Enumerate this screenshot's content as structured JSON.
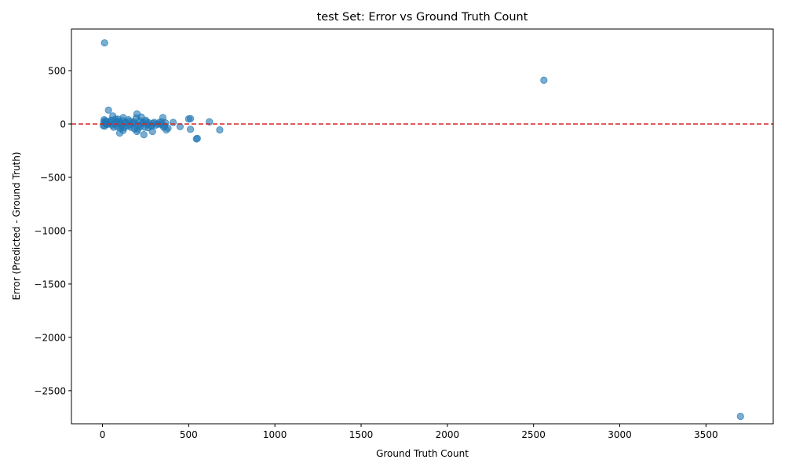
{
  "chart_data": {
    "type": "scatter",
    "title": "test Set: Error vs Ground Truth Count",
    "xlabel": "Ground Truth Count",
    "ylabel": "Error (Predicted - Ground Truth)",
    "xlim": [
      -180,
      3890
    ],
    "ylim": [
      -2810,
      890
    ],
    "xticks": [
      0,
      500,
      1000,
      1500,
      2000,
      2500,
      3000,
      3500
    ],
    "yticks": [
      500,
      0,
      -500,
      -1000,
      -1500,
      -2000,
      -2500
    ],
    "xtick_labels": [
      "0",
      "500",
      "1000",
      "1500",
      "2000",
      "2500",
      "3000",
      "3500"
    ],
    "ytick_labels": [
      "500",
      "0",
      "−500",
      "−1000",
      "−1500",
      "−2000",
      "−2500"
    ],
    "grid": false,
    "reference_line": {
      "y": 0,
      "style": "dashed",
      "color": "#d62728"
    },
    "marker_color": "#1f77b4",
    "series": [
      {
        "points": [
          [
            12,
            760
          ],
          [
            2560,
            410
          ],
          [
            3700,
            -2740
          ],
          [
            35,
            130
          ],
          [
            200,
            95
          ],
          [
            60,
            75
          ],
          [
            225,
            65
          ],
          [
            350,
            60
          ],
          [
            120,
            60
          ],
          [
            500,
            48
          ],
          [
            510,
            50
          ],
          [
            90,
            45
          ],
          [
            150,
            40
          ],
          [
            10,
            40
          ],
          [
            250,
            35
          ],
          [
            620,
            20
          ],
          [
            410,
            15
          ],
          [
            300,
            15
          ],
          [
            180,
            20
          ],
          [
            80,
            25
          ],
          [
            40,
            20
          ],
          [
            15,
            10
          ],
          [
            20,
            5
          ],
          [
            25,
            -5
          ],
          [
            30,
            0
          ],
          [
            45,
            10
          ],
          [
            55,
            -10
          ],
          [
            70,
            0
          ],
          [
            100,
            5
          ],
          [
            110,
            -15
          ],
          [
            130,
            10
          ],
          [
            160,
            -5
          ],
          [
            190,
            0
          ],
          [
            210,
            -10
          ],
          [
            230,
            5
          ],
          [
            260,
            -5
          ],
          [
            280,
            -15
          ],
          [
            320,
            0
          ],
          [
            340,
            -5
          ],
          [
            360,
            -20
          ],
          [
            380,
            -40
          ],
          [
            450,
            -25
          ],
          [
            510,
            -50
          ],
          [
            680,
            -55
          ],
          [
            100,
            -85
          ],
          [
            120,
            -60
          ],
          [
            200,
            -70
          ],
          [
            240,
            -100
          ],
          [
            290,
            -70
          ],
          [
            370,
            -55
          ],
          [
            545,
            -140
          ],
          [
            550,
            -135
          ],
          [
            5,
            -15
          ],
          [
            8,
            20
          ],
          [
            12,
            -20
          ],
          [
            18,
            30
          ],
          [
            50,
            35
          ],
          [
            65,
            -30
          ],
          [
            75,
            45
          ],
          [
            85,
            -25
          ],
          [
            95,
            20
          ],
          [
            105,
            -40
          ],
          [
            115,
            30
          ],
          [
            125,
            -35
          ],
          [
            135,
            15
          ],
          [
            145,
            -20
          ],
          [
            155,
            25
          ],
          [
            165,
            -30
          ],
          [
            175,
            10
          ],
          [
            185,
            -45
          ],
          [
            195,
            55
          ],
          [
            205,
            -50
          ],
          [
            215,
            30
          ],
          [
            220,
            -25
          ],
          [
            235,
            15
          ],
          [
            245,
            -30
          ],
          [
            255,
            20
          ],
          [
            265,
            -35
          ],
          [
            270,
            10
          ],
          [
            285,
            -20
          ],
          [
            295,
            5
          ],
          [
            310,
            -10
          ],
          [
            330,
            15
          ],
          [
            345,
            20
          ],
          [
            355,
            -30
          ],
          [
            365,
            10
          ]
        ]
      }
    ]
  }
}
